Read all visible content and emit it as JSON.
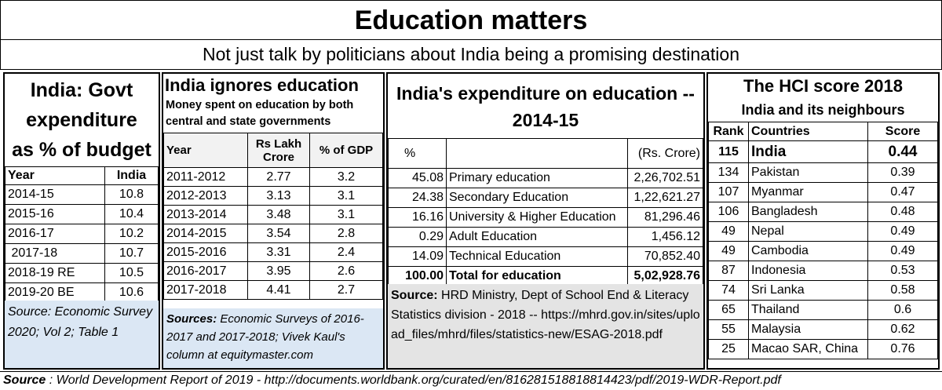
{
  "title": "Education matters",
  "subtitle": "Not just talk by politicians about India being a promising destination",
  "panel1": {
    "title_lines": [
      "India: Govt",
      "expenditure",
      "as % of budget"
    ],
    "headers": [
      "Year",
      "India"
    ],
    "rows": [
      [
        "2014-15",
        "10.8"
      ],
      [
        "2015-16",
        "10.4"
      ],
      [
        "2016-17",
        "10.2"
      ],
      [
        " 2017-18",
        "10.7"
      ],
      [
        "2018-19 RE",
        "10.5"
      ],
      [
        "2019-20 BE",
        "10.6"
      ]
    ],
    "source": "Source: Economic Survey 2020; Vol 2; Table 1"
  },
  "panel2": {
    "title": "India ignores education",
    "subtitle": "Money spent on education by both central and state governments",
    "headers": [
      "Year",
      "Rs Lakh Crore",
      "% of GDP"
    ],
    "rows": [
      [
        "2011-2012",
        "2.77",
        "3.2"
      ],
      [
        "2012-2013",
        "3.13",
        "3.1"
      ],
      [
        "2013-2014",
        "3.48",
        "3.1"
      ],
      [
        "2014-2015",
        "3.54",
        "2.8"
      ],
      [
        "2015-2016",
        "3.31",
        "2.4"
      ],
      [
        "2016-2017",
        "3.95",
        "2.6"
      ],
      [
        "2017-2018",
        "4.41",
        "2.7"
      ]
    ],
    "source_label": "Sources:",
    "source_text": " Economic Surveys of 2016-2017 and 2017-2018; Vivek Kaul's column at equitymaster.com"
  },
  "panel3": {
    "title": "India's expenditure on education -- 2014-15",
    "headers": [
      "%",
      "",
      "(Rs. Crore)"
    ],
    "rows": [
      [
        "45.08",
        "Primary education",
        "2,26,702.51"
      ],
      [
        "24.38",
        "Secondary Education",
        "1,22,621.27"
      ],
      [
        "16.16",
        "University & Higher Education",
        "81,296.46"
      ],
      [
        "0.29",
        "Adult Education",
        "1,456.12"
      ],
      [
        "14.09",
        "Technical Education",
        "70,852.40"
      ]
    ],
    "total": [
      "100.00",
      "Total for education",
      "5,02,928.76"
    ],
    "source_label": "Source:",
    "source_text": " HRD Ministry, Dept of School End & Literacy Statistics division - 2018 -- https://mhrd.gov.in/sites/upload_files/mhrd/files/statistics-new/ESAG-2018.pdf"
  },
  "panel4": {
    "title": "The HCI score 2018",
    "subtitle": "India and its neighbours",
    "headers": [
      "Rank",
      "Countries",
      "Score"
    ],
    "rows": [
      [
        "115",
        "India",
        "0.44"
      ],
      [
        "134",
        "Pakistan",
        "0.39"
      ],
      [
        "107",
        "Myanmar",
        "0.47"
      ],
      [
        "106",
        "Bangladesh",
        "0.48"
      ],
      [
        "49",
        "Nepal",
        "0.49"
      ],
      [
        "49",
        "Cambodia",
        "0.49"
      ],
      [
        "87",
        "Indonesia",
        "0.53"
      ],
      [
        "74",
        "Sri Lanka",
        "0.58"
      ],
      [
        "65",
        "Thailand",
        "0.6"
      ],
      [
        "55",
        "Malaysia",
        "0.62"
      ],
      [
        "25",
        "Macao SAR, China",
        "0.76"
      ]
    ]
  },
  "footer": {
    "label": "Source",
    "text": " : World Development Report of 2019 - http://documents.worldbank.org/curated/en/816281518818814423/pdf/2019-WDR-Report.pdf"
  }
}
